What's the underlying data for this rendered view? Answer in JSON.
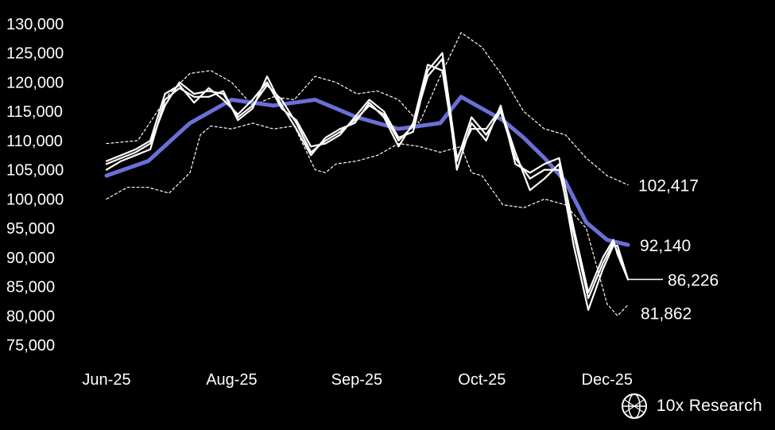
{
  "chart_data": {
    "type": "line",
    "title": "",
    "xlabel": "",
    "ylabel": "",
    "ylim": [
      75000,
      130000
    ],
    "y_ticks": [
      "130,000",
      "125,000",
      "120,000",
      "115,000",
      "110,000",
      "105,000",
      "100,000",
      "95,000",
      "90,000",
      "85,000",
      "80,000",
      "75,000"
    ],
    "y_tick_values": [
      130000,
      125000,
      120000,
      115000,
      110000,
      105000,
      100000,
      95000,
      90000,
      85000,
      80000,
      75000
    ],
    "x_ticks": [
      "Jun-25",
      "Aug-25",
      "Sep-25",
      "Oct-25",
      "Dec-25"
    ],
    "x_tick_days": [
      0,
      60,
      120,
      180,
      240
    ],
    "grid": false,
    "legend": "none",
    "colors": {
      "price": "#ffffff",
      "moving_average": "#6b6fd6",
      "band": "#ffffff",
      "background": "#000000"
    },
    "end_labels": [
      {
        "text": "102,417",
        "value": 102417,
        "series": "upper band"
      },
      {
        "text": "92,140",
        "value": 92140,
        "series": "moving average"
      },
      {
        "text": "86,226",
        "value": 86226,
        "series": "price"
      },
      {
        "text": "81,862",
        "value": 81862,
        "series": "lower band"
      }
    ],
    "series": [
      {
        "key": "price",
        "style": "solid-white",
        "x": [
          0,
          7,
          14,
          21,
          28,
          35,
          42,
          49,
          56,
          63,
          70,
          77,
          84,
          91,
          98,
          105,
          112,
          119,
          126,
          133,
          140,
          147,
          154,
          161,
          168,
          175,
          182,
          189,
          196,
          203,
          210,
          217,
          224,
          231,
          238,
          243,
          245,
          250
        ],
        "values": [
          106000,
          107000,
          108000,
          109500,
          116000,
          120000,
          118000,
          118500,
          118000,
          114000,
          116000,
          119500,
          117000,
          113000,
          108000,
          110000,
          111500,
          113500,
          116000,
          114500,
          110000,
          112500,
          121000,
          124000,
          105000,
          113000,
          110000,
          116000,
          106000,
          104500,
          106000,
          107000,
          95000,
          84000,
          90000,
          93000,
          90500,
          86226
        ]
      },
      {
        "key": "price_b",
        "style": "solid-white",
        "x": [
          0,
          7,
          14,
          21,
          28,
          35,
          42,
          49,
          56,
          63,
          70,
          77,
          84,
          91,
          98,
          105,
          112,
          119,
          126,
          133,
          140,
          147,
          154,
          161,
          168,
          175,
          182,
          189,
          196,
          203,
          210,
          217,
          224,
          231,
          238,
          243,
          245,
          250
        ],
        "values": [
          105000,
          106500,
          107500,
          108500,
          117000,
          119000,
          117500,
          117500,
          118500,
          113500,
          115500,
          121000,
          116000,
          112000,
          107500,
          110500,
          112000,
          113000,
          116500,
          114000,
          109000,
          113000,
          123000,
          122000,
          106500,
          114000,
          111000,
          115000,
          107000,
          103500,
          105000,
          105000,
          94000,
          83000,
          89000,
          92500,
          91000,
          86226
        ]
      },
      {
        "key": "price_c",
        "style": "solid-white",
        "x": [
          0,
          7,
          14,
          21,
          28,
          35,
          42,
          49,
          56,
          63,
          70,
          77,
          84,
          91,
          98,
          105,
          112,
          119,
          126,
          133,
          140,
          147,
          154,
          161,
          168,
          175,
          182,
          189,
          196,
          203,
          210,
          217,
          224,
          231,
          238,
          243,
          245,
          250
        ],
        "values": [
          106500,
          107500,
          108500,
          110000,
          118000,
          119500,
          116500,
          119000,
          117000,
          114500,
          117000,
          120000,
          115500,
          113500,
          109000,
          109500,
          111000,
          114000,
          117000,
          115000,
          110500,
          111500,
          122000,
          125000,
          107000,
          112000,
          112000,
          115500,
          108000,
          101500,
          103500,
          106000,
          92000,
          81000,
          88000,
          92000,
          92000,
          86226
        ]
      },
      {
        "key": "moving_average",
        "style": "solid-blue",
        "x": [
          0,
          20,
          40,
          60,
          80,
          100,
          120,
          140,
          160,
          170,
          180,
          190,
          200,
          210,
          220,
          230,
          240,
          250
        ],
        "values": [
          104000,
          106500,
          113000,
          117000,
          116000,
          117000,
          114000,
          112000,
          113000,
          117500,
          115500,
          113500,
          110500,
          107000,
          103000,
          96000,
          93000,
          92140
        ]
      },
      {
        "key": "upper_band",
        "style": "dotted",
        "x": [
          0,
          15,
          30,
          40,
          50,
          60,
          70,
          80,
          90,
          100,
          110,
          120,
          130,
          140,
          150,
          160,
          170,
          180,
          190,
          200,
          210,
          220,
          230,
          240,
          250
        ],
        "values": [
          109500,
          110000,
          118000,
          121500,
          122000,
          120000,
          116000,
          117500,
          117000,
          121000,
          120000,
          118000,
          118500,
          117000,
          113000,
          121000,
          128500,
          126000,
          121000,
          115000,
          112000,
          111000,
          107000,
          104000,
          102417
        ]
      },
      {
        "key": "lower_band",
        "style": "dotted",
        "x": [
          0,
          10,
          20,
          30,
          40,
          45,
          50,
          60,
          70,
          80,
          90,
          100,
          105,
          110,
          120,
          130,
          140,
          150,
          160,
          170,
          175,
          180,
          190,
          200,
          210,
          220,
          230,
          240,
          245,
          250
        ],
        "values": [
          100000,
          102000,
          102000,
          101000,
          104500,
          111000,
          112500,
          112000,
          113000,
          112000,
          112500,
          105000,
          104500,
          106000,
          106500,
          107500,
          109500,
          109000,
          108000,
          109000,
          104500,
          104000,
          99000,
          98500,
          100000,
          99000,
          95000,
          82000,
          80000,
          81862
        ]
      }
    ]
  },
  "brand": {
    "name": "10x Research",
    "icon": "globe-logo-icon"
  }
}
